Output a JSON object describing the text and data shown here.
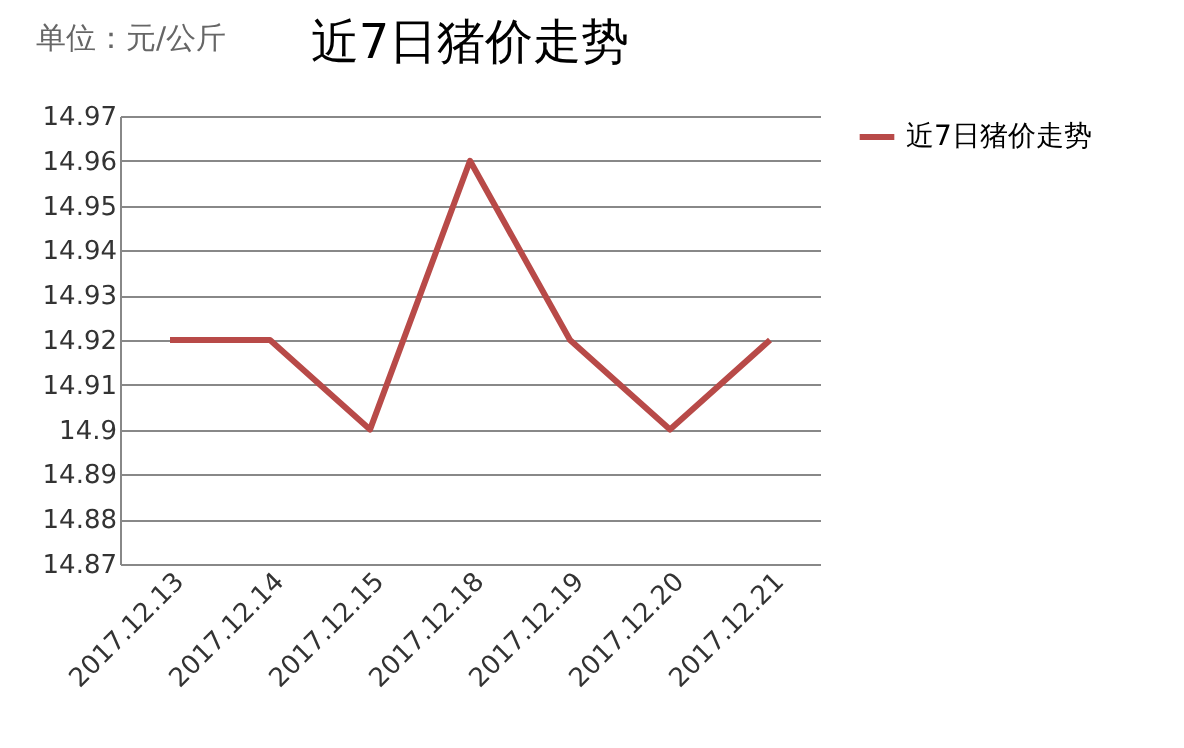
{
  "chart_data": {
    "type": "line",
    "title": "近7日猪价走势",
    "annotations": [
      "单位：元/公斤"
    ],
    "categories": [
      "2017.12.13",
      "2017.12.14",
      "2017.12.15",
      "2017.12.18",
      "2017.12.19",
      "2017.12.20",
      "2017.12.21"
    ],
    "series": [
      {
        "name": "近7日猪价走势",
        "color": "#b84a48",
        "values": [
          14.92,
          14.92,
          14.9,
          14.96,
          14.92,
          14.9,
          14.92
        ]
      }
    ],
    "ylim": [
      14.87,
      14.97
    ],
    "yticks": [
      14.87,
      14.88,
      14.89,
      14.9,
      14.91,
      14.92,
      14.93,
      14.94,
      14.95,
      14.96,
      14.97
    ],
    "grid": "y",
    "legend": "right",
    "marker": "none",
    "line_style": "solid"
  }
}
